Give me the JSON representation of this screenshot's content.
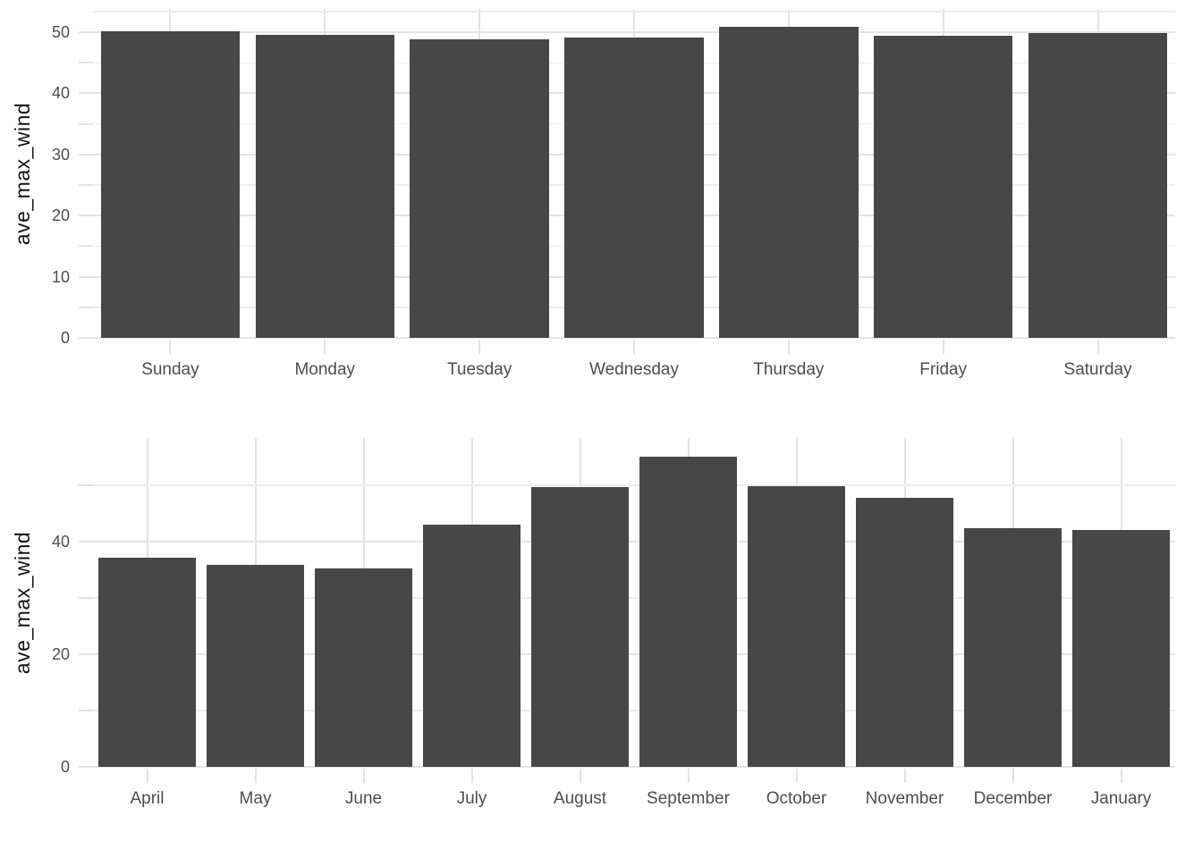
{
  "figure": {
    "background": "#FFFFFF"
  },
  "colors": {
    "bar": "#474747",
    "grid_major": "#E3E3E3",
    "grid_minor": "#EDEDED",
    "tick": "#E3E3E3",
    "axis_text": "#4D4D4D",
    "axis_title": "#111111"
  },
  "chart_data": [
    {
      "type": "bar",
      "title": "",
      "xlabel": "",
      "ylabel": "ave_max_wind",
      "categories": [
        "Sunday",
        "Monday",
        "Tuesday",
        "Wednesday",
        "Thursday",
        "Friday",
        "Saturday"
      ],
      "values": [
        50.2,
        49.6,
        48.9,
        49.1,
        50.9,
        49.4,
        49.9
      ],
      "ylim": [
        0,
        53.8
      ],
      "y_major_breaks": [
        0,
        10,
        20,
        30,
        40,
        50
      ],
      "y_minor_breaks": [
        5,
        15,
        25,
        35,
        45,
        53.4
      ],
      "y_tick_stub_breaks": [
        0,
        5,
        10,
        15,
        20,
        25,
        30,
        35,
        40,
        45,
        50
      ],
      "grid": true,
      "legend_position": "none",
      "bar_rel_width": 0.9
    },
    {
      "type": "bar",
      "title": "",
      "xlabel": "",
      "ylabel": "ave_max_wind",
      "categories": [
        "April",
        "May",
        "June",
        "July",
        "August",
        "September",
        "October",
        "November",
        "December",
        "January"
      ],
      "values": [
        37.2,
        35.9,
        35.2,
        43.0,
        49.6,
        55.0,
        49.9,
        47.8,
        42.3,
        42.0
      ],
      "ylim": [
        0,
        58.4
      ],
      "y_major_breaks": [
        0,
        20,
        40
      ],
      "y_minor_breaks": [
        10,
        30,
        50
      ],
      "y_tick_stub_breaks": [
        0,
        10,
        20,
        30,
        40,
        50
      ],
      "grid": true,
      "legend_position": "none",
      "bar_rel_width": 0.9
    }
  ]
}
